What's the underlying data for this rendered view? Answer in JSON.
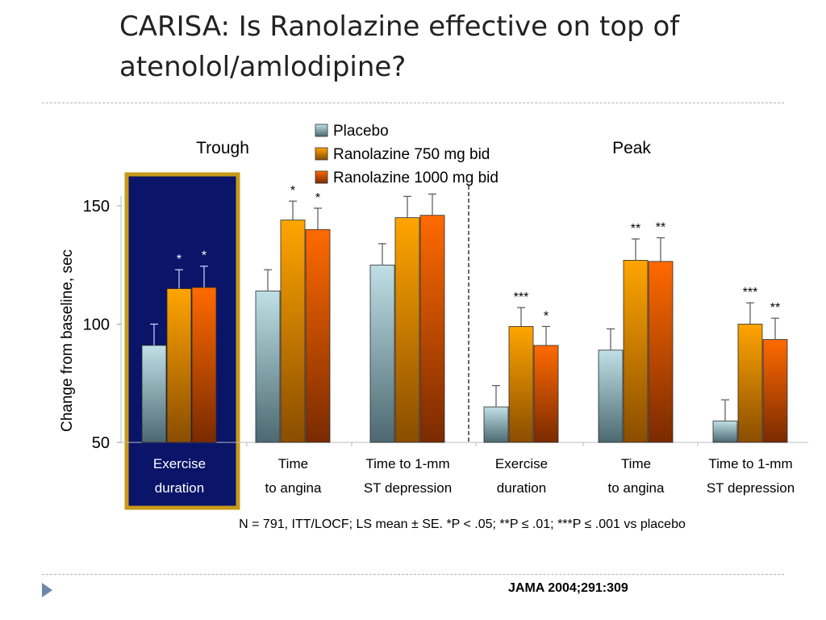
{
  "slide": {
    "title_line1": "CARISA: Is Ranolazine effective on top of",
    "title_line2": "atenolol/amlodipine?",
    "source": "JAMA 2004;291:309"
  },
  "chart_data": {
    "type": "bar",
    "ylabel": "Change from baseline, sec",
    "ylim": [
      50,
      150
    ],
    "yticks": [
      50,
      100,
      150
    ],
    "groups": [
      {
        "name": "Trough",
        "categories": [
          "Exercise duration",
          "Time to angina",
          "Time to 1-mm ST depression"
        ]
      },
      {
        "name": "Peak",
        "categories": [
          "Exercise duration",
          "Time to angina",
          "Time to 1-mm ST depression"
        ]
      }
    ],
    "category_labels": [
      [
        "Exercise",
        "duration"
      ],
      [
        "Time",
        "to angina"
      ],
      [
        "Time to 1-mm",
        "ST depression"
      ],
      [
        "Exercise",
        "duration"
      ],
      [
        "Time",
        "to angina"
      ],
      [
        "Time to 1-mm",
        "ST depression"
      ]
    ],
    "highlighted_category": 0,
    "series": [
      {
        "name": "Placebo",
        "values": [
          91,
          114,
          125,
          65,
          89,
          59
        ],
        "errors": [
          9,
          9,
          9,
          9,
          9,
          9
        ],
        "color": "#bfe0e6",
        "color_dark": "#4d6870",
        "significance": [
          "",
          "",
          "",
          "",
          "",
          ""
        ]
      },
      {
        "name": "Ranolazine 750 mg bid",
        "values": [
          115,
          144,
          145,
          99,
          127,
          100
        ],
        "errors": [
          8,
          8,
          9,
          8,
          9,
          9
        ],
        "color": "#ffa500",
        "color_dark": "#8a4d00",
        "significance": [
          "*",
          "*",
          "",
          "***",
          "**",
          "***"
        ]
      },
      {
        "name": "Ranolazine 1000 mg bid",
        "values": [
          115.5,
          140,
          146,
          91,
          126.5,
          93.5
        ],
        "errors": [
          9,
          9,
          9,
          8,
          10,
          9
        ],
        "color": "#ff6a00",
        "color_dark": "#7a2a00",
        "significance": [
          "*",
          "*",
          "",
          "*",
          "**",
          "**"
        ]
      }
    ],
    "footnote": "N = 791, ITT/LOCF; LS mean ± SE.   *P < .05; **P ≤ .01; ***P ≤ .001 vs placebo",
    "colors": {
      "highlight_fill": "#0a1468",
      "highlight_border": "#c79a1a"
    }
  }
}
